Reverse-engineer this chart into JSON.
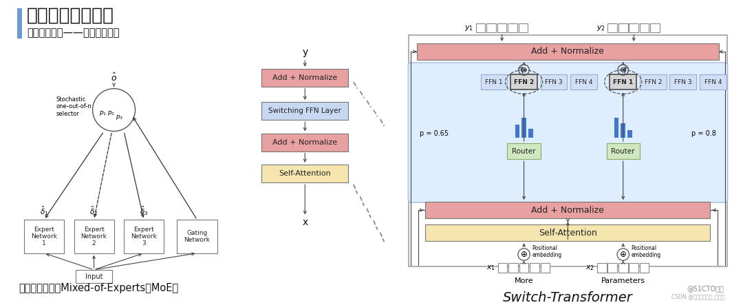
{
  "title": "预训练模型的优化",
  "subtitle": "超大规模训练——超大规模算力",
  "title_bar_color": "#6b9bd2",
  "background_color": "#ffffff",
  "left_caption": "混合专家训练（Mixed-of-Experts，MoE）",
  "right_caption": "Switch-Transformer",
  "watermark": "@51CTO博客",
  "watermark2": "CSDN @华师数据挖掘_王某宁",
  "add_norm_color": "#e8a0a0",
  "self_attn_color": "#f5e6b0",
  "switching_ffn_color": "#c8d8f0",
  "ffn_box_color": "#d0dff5",
  "router_color": "#d0e8c0",
  "blue_bg_color": "#deeeff"
}
